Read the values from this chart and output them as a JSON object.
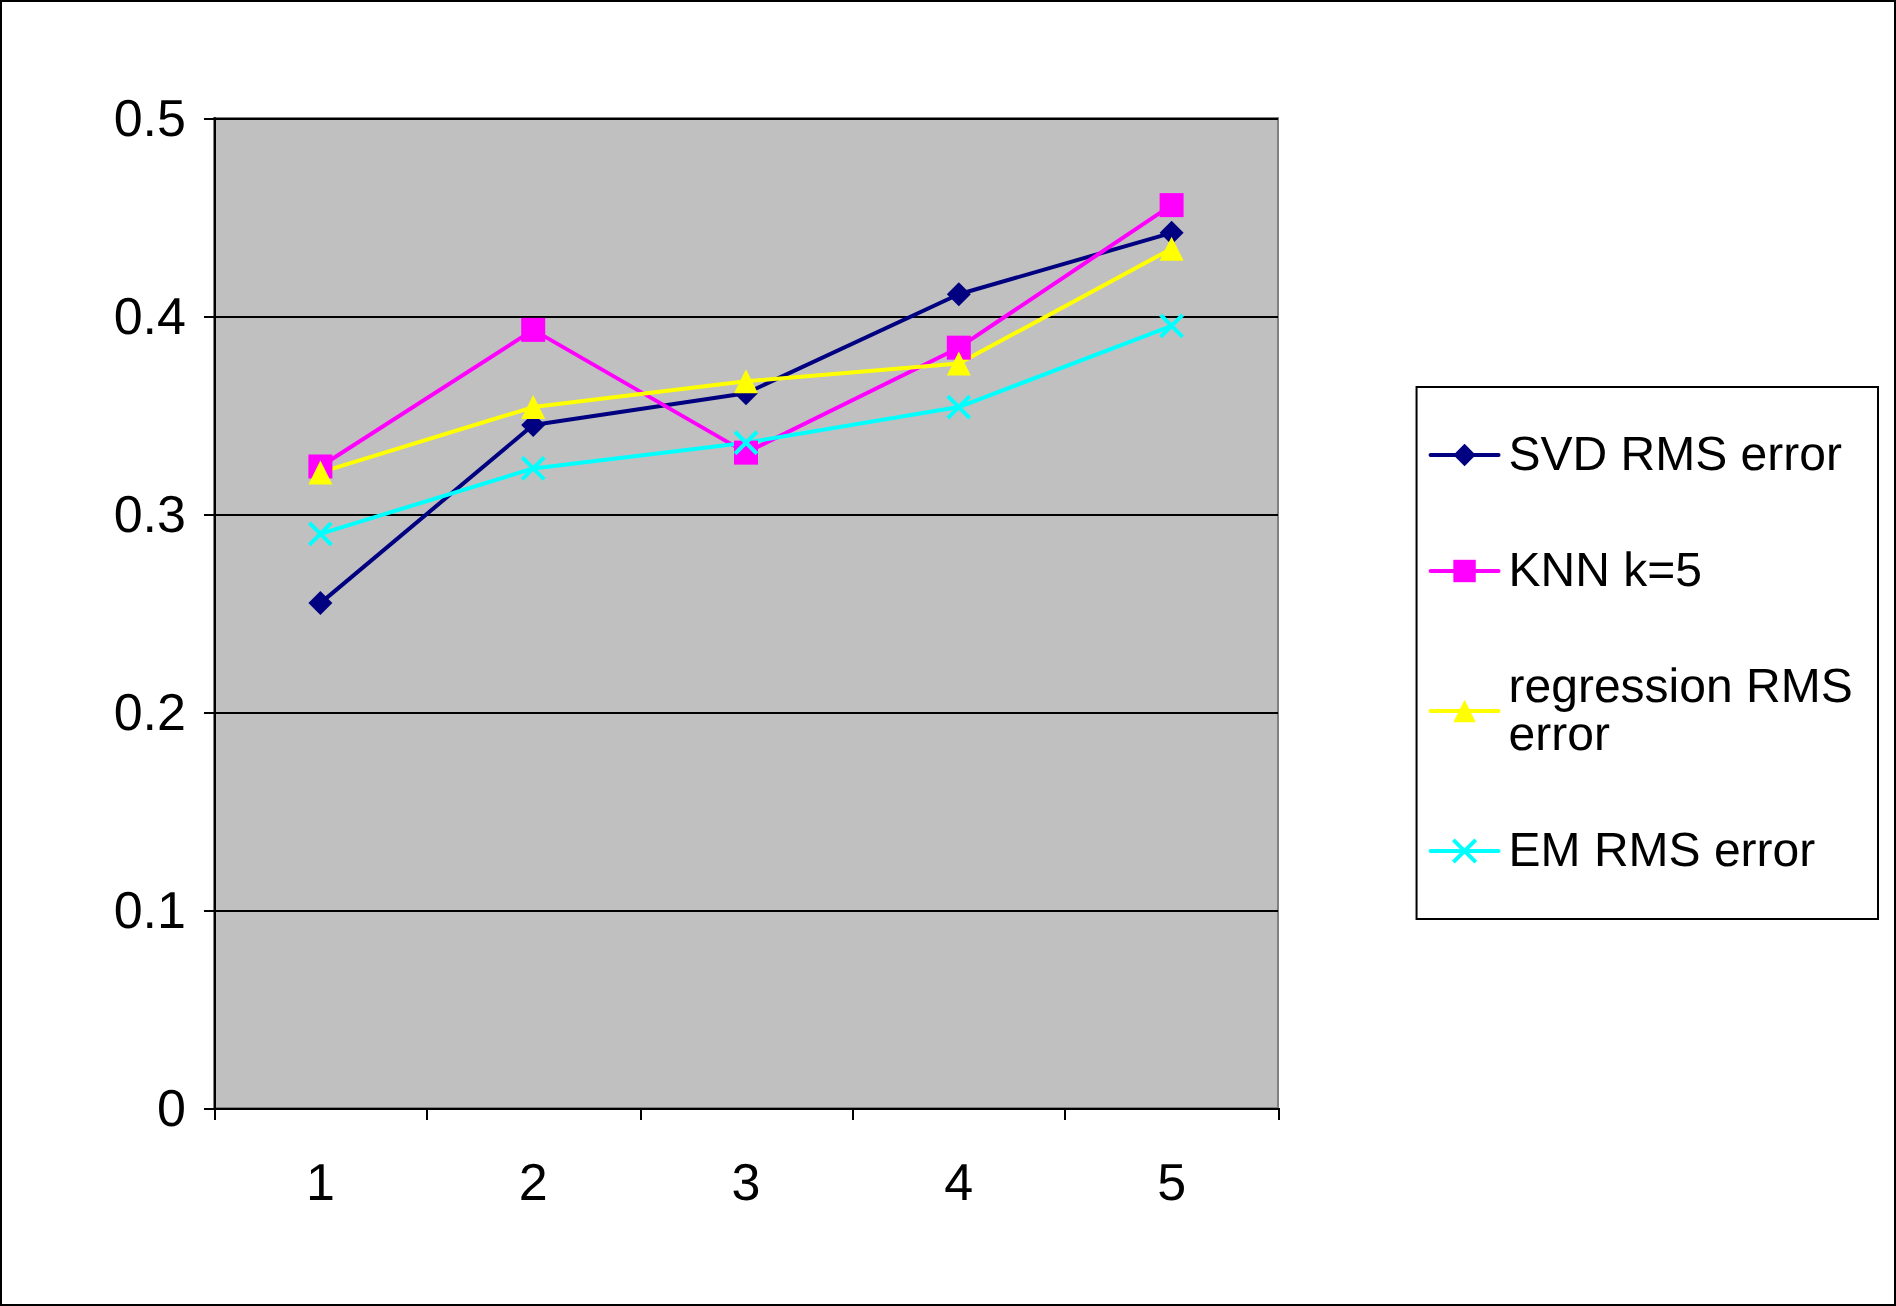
{
  "chart_data": {
    "type": "line",
    "categories": [
      "1",
      "2",
      "3",
      "4",
      "5"
    ],
    "series": [
      {
        "name": "SVD RMS error",
        "color": "#000080",
        "marker": "diamond",
        "values": [
          0.255,
          0.345,
          0.361,
          0.411,
          0.442
        ]
      },
      {
        "name": "KNN k=5",
        "color": "#ff00ff",
        "marker": "square",
        "values": [
          0.324,
          0.393,
          0.331,
          0.384,
          0.456
        ]
      },
      {
        "name": "regression RMS error",
        "color": "#ffff00",
        "marker": "triangle",
        "values": [
          0.321,
          0.354,
          0.367,
          0.376,
          0.434
        ]
      },
      {
        "name": "EM RMS error",
        "color": "#00ffff",
        "marker": "cross",
        "values": [
          0.29,
          0.323,
          0.336,
          0.354,
          0.395
        ]
      }
    ],
    "ylim": [
      0,
      0.5
    ],
    "yticks": [
      0,
      0.1,
      0.2,
      0.3,
      0.4,
      0.5
    ],
    "grid": "y",
    "legend": "right",
    "line_style": "solid"
  }
}
